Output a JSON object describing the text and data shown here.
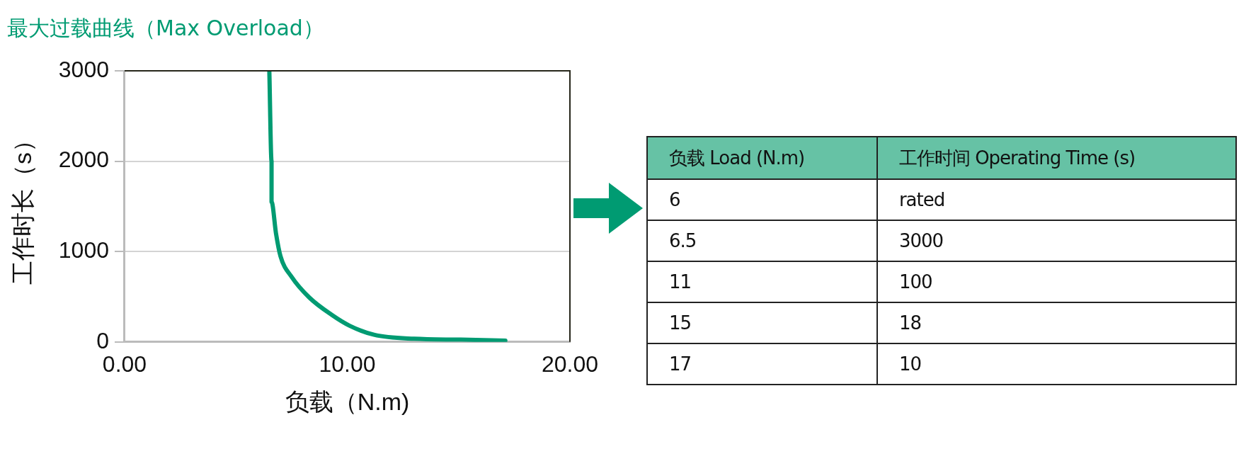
{
  "chart_data": [
    {
      "type": "line",
      "title": "最大过载曲线（Max Overload）",
      "xlabel": "负载（N.m)",
      "ylabel": "工作时长（s）",
      "color": "#009b72",
      "marker": "none",
      "line_style": "solid",
      "grid": "y",
      "legend": false,
      "x": [
        6.5,
        6.6,
        6.6,
        6.8,
        7.0,
        7.5,
        8.3,
        9.3,
        10.1,
        11.2,
        13,
        15.1,
        17.1
      ],
      "values": [
        3000,
        2000,
        1550,
        1200,
        950,
        720,
        490,
        300,
        180,
        80,
        35,
        25,
        15
      ],
      "xlim": [
        0,
        20
      ],
      "xticks": [
        {
          "value": 0,
          "label": "0.00"
        },
        {
          "value": 10,
          "label": "10.00"
        },
        {
          "value": 20,
          "label": "20.00"
        }
      ],
      "ylim": [
        0,
        3000
      ],
      "yticks": [
        0,
        1000,
        2000,
        3000
      ]
    },
    {
      "type": "other",
      "xlabel": "负载 Load (N.m)",
      "ylabel": "工作时间 Operating Time (s)",
      "color": "#66c2a5",
      "categories": [
        "6",
        "6.5",
        "11",
        "15",
        "17"
      ],
      "value_labels": [
        "rated",
        "3000",
        "100",
        "18",
        "10"
      ]
    }
  ]
}
